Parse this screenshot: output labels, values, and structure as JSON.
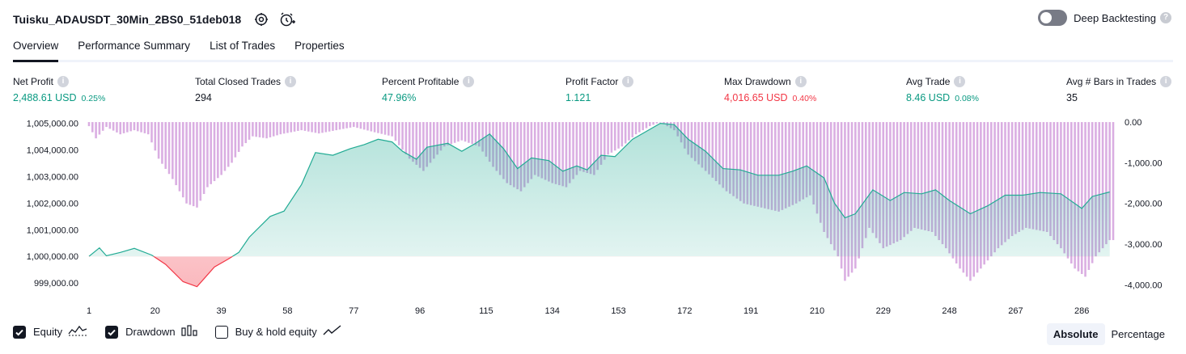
{
  "header": {
    "title": "Tuisku_ADAUSDT_30Min_2BS0_51deb018",
    "icons": [
      "settings-icon",
      "add-alert-icon"
    ],
    "deep_backtesting_label": "Deep Backtesting",
    "deep_backtesting_enabled": false
  },
  "tabs": [
    {
      "label": "Overview",
      "active": true
    },
    {
      "label": "Performance Summary",
      "active": false
    },
    {
      "label": "List of Trades",
      "active": false
    },
    {
      "label": "Properties",
      "active": false
    }
  ],
  "stats": [
    {
      "label": "Net Profit",
      "value": "2,488.61 USD",
      "pct": "0.25%",
      "tone": "green"
    },
    {
      "label": "Total Closed Trades",
      "value": "294",
      "pct": "",
      "tone": "dark"
    },
    {
      "label": "Percent Profitable",
      "value": "47.96%",
      "pct": "",
      "tone": "green"
    },
    {
      "label": "Profit Factor",
      "value": "1.121",
      "pct": "",
      "tone": "green"
    },
    {
      "label": "Max Drawdown",
      "value": "4,016.65 USD",
      "pct": "0.40%",
      "tone": "red"
    },
    {
      "label": "Avg Trade",
      "value": "8.46 USD",
      "pct": "0.08%",
      "tone": "green"
    },
    {
      "label": "Avg # Bars in Trades",
      "value": "35",
      "pct": "",
      "tone": "dark"
    }
  ],
  "colors": {
    "profit": "#089981",
    "loss": "#f23645",
    "equity_line_up": "#22ab94",
    "equity_line_down": "#f23645",
    "equity_fill_up": "#22ab94",
    "equity_fill_down": "#f23645",
    "drawdown_bar": "#ce93d8"
  },
  "chart_data": {
    "type": "area",
    "x_ticks": [
      "1",
      "20",
      "39",
      "58",
      "77",
      "96",
      "115",
      "134",
      "153",
      "172",
      "191",
      "210",
      "229",
      "248",
      "267",
      "286"
    ],
    "y_left_ticks": [
      "1,005,000.00",
      "1,004,000.00",
      "1,003,000.00",
      "1,002,000.00",
      "1,001,000.00",
      "1,000,000.00",
      "999,000.00"
    ],
    "y_left_values": [
      1005000,
      1004000,
      1003000,
      1002000,
      1001000,
      1000000,
      999000
    ],
    "y_right_ticks": [
      "0.00",
      "-1,000.00",
      "-2,000.00",
      "-3,000.00",
      "-4,000.00"
    ],
    "y_right_values": [
      0,
      -1000,
      -2000,
      -3000,
      -4000
    ],
    "xlim": [
      1,
      295
    ],
    "ylim_left": [
      998700,
      1005200
    ],
    "ylim_right": [
      -4150,
      100
    ],
    "baseline": 1000000,
    "equity_points": [
      [
        1,
        1000000
      ],
      [
        4,
        1000320
      ],
      [
        6,
        1000020
      ],
      [
        10,
        1000150
      ],
      [
        14,
        1000300
      ],
      [
        19,
        1000050
      ],
      [
        23,
        999700
      ],
      [
        28,
        999050
      ],
      [
        32,
        998860
      ],
      [
        37,
        999600
      ],
      [
        41,
        999900
      ],
      [
        44,
        1000150
      ],
      [
        47,
        1000720
      ],
      [
        53,
        1001500
      ],
      [
        57,
        1001700
      ],
      [
        62,
        1002700
      ],
      [
        66,
        1003900
      ],
      [
        71,
        1003800
      ],
      [
        76,
        1004050
      ],
      [
        80,
        1004200
      ],
      [
        84,
        1004400
      ],
      [
        88,
        1004300
      ],
      [
        91,
        1003950
      ],
      [
        95,
        1003650
      ],
      [
        98,
        1004100
      ],
      [
        104,
        1004250
      ],
      [
        108,
        1003950
      ],
      [
        112,
        1004250
      ],
      [
        116,
        1004600
      ],
      [
        120,
        1004050
      ],
      [
        124,
        1003300
      ],
      [
        128,
        1003700
      ],
      [
        133,
        1003600
      ],
      [
        137,
        1003200
      ],
      [
        141,
        1003400
      ],
      [
        144,
        1003250
      ],
      [
        148,
        1003800
      ],
      [
        152,
        1003750
      ],
      [
        157,
        1004400
      ],
      [
        161,
        1004700
      ],
      [
        165,
        1005000
      ],
      [
        169,
        1004950
      ],
      [
        173,
        1004400
      ],
      [
        178,
        1003950
      ],
      [
        183,
        1003300
      ],
      [
        188,
        1003250
      ],
      [
        193,
        1003050
      ],
      [
        199,
        1003050
      ],
      [
        203,
        1003200
      ],
      [
        207,
        1003400
      ],
      [
        212,
        1002950
      ],
      [
        215,
        1002000
      ],
      [
        218,
        1001450
      ],
      [
        221,
        1001600
      ],
      [
        226,
        1002500
      ],
      [
        231,
        1002100
      ],
      [
        235,
        1002400
      ],
      [
        240,
        1002350
      ],
      [
        244,
        1002500
      ],
      [
        248,
        1002100
      ],
      [
        254,
        1001600
      ],
      [
        259,
        1001900
      ],
      [
        264,
        1002300
      ],
      [
        269,
        1002300
      ],
      [
        274,
        1002400
      ],
      [
        280,
        1002350
      ],
      [
        286,
        1001800
      ],
      [
        289,
        1002250
      ],
      [
        294,
        1002420
      ]
    ],
    "drawdown_points": [
      [
        1,
        -100
      ],
      [
        3,
        -400
      ],
      [
        6,
        -120
      ],
      [
        10,
        -300
      ],
      [
        14,
        -200
      ],
      [
        18,
        -300
      ],
      [
        21,
        -900
      ],
      [
        25,
        -1400
      ],
      [
        29,
        -2000
      ],
      [
        32,
        -2100
      ],
      [
        35,
        -1600
      ],
      [
        39,
        -1300
      ],
      [
        42,
        -1000
      ],
      [
        45,
        -600
      ],
      [
        48,
        -350
      ],
      [
        52,
        -400
      ],
      [
        56,
        -300
      ],
      [
        62,
        -200
      ],
      [
        67,
        -280
      ],
      [
        72,
        -200
      ],
      [
        77,
        -120
      ],
      [
        83,
        -250
      ],
      [
        88,
        -350
      ],
      [
        93,
        -900
      ],
      [
        97,
        -1200
      ],
      [
        103,
        -600
      ],
      [
        108,
        -450
      ],
      [
        113,
        -600
      ],
      [
        117,
        -1100
      ],
      [
        121,
        -1500
      ],
      [
        125,
        -1700
      ],
      [
        129,
        -1300
      ],
      [
        134,
        -1500
      ],
      [
        138,
        -1600
      ],
      [
        142,
        -1200
      ],
      [
        146,
        -1300
      ],
      [
        150,
        -800
      ],
      [
        154,
        -600
      ],
      [
        158,
        -300
      ],
      [
        162,
        -100
      ],
      [
        165,
        0
      ],
      [
        169,
        -200
      ],
      [
        173,
        -800
      ],
      [
        178,
        -1200
      ],
      [
        184,
        -1700
      ],
      [
        189,
        -2000
      ],
      [
        194,
        -2100
      ],
      [
        199,
        -2200
      ],
      [
        204,
        -2000
      ],
      [
        208,
        -1800
      ],
      [
        212,
        -2700
      ],
      [
        216,
        -3300
      ],
      [
        218,
        -3900
      ],
      [
        221,
        -3600
      ],
      [
        225,
        -2600
      ],
      [
        229,
        -3100
      ],
      [
        234,
        -2900
      ],
      [
        238,
        -2600
      ],
      [
        243,
        -2700
      ],
      [
        247,
        -3100
      ],
      [
        251,
        -3600
      ],
      [
        254,
        -3900
      ],
      [
        258,
        -3500
      ],
      [
        262,
        -3100
      ],
      [
        266,
        -2800
      ],
      [
        270,
        -2600
      ],
      [
        276,
        -2700
      ],
      [
        280,
        -3100
      ],
      [
        284,
        -3600
      ],
      [
        287,
        -3800
      ],
      [
        290,
        -3300
      ],
      [
        294,
        -2900
      ]
    ]
  },
  "legend": {
    "items": [
      {
        "label": "Equity",
        "checked": true,
        "icon": "equity-area-icon"
      },
      {
        "label": "Drawdown",
        "checked": true,
        "icon": "bar-chart-icon"
      },
      {
        "label": "Buy & hold equity",
        "checked": false,
        "icon": "line-chart-icon"
      }
    ],
    "modes": [
      {
        "label": "Absolute",
        "selected": true
      },
      {
        "label": "Percentage",
        "selected": false
      }
    ]
  }
}
